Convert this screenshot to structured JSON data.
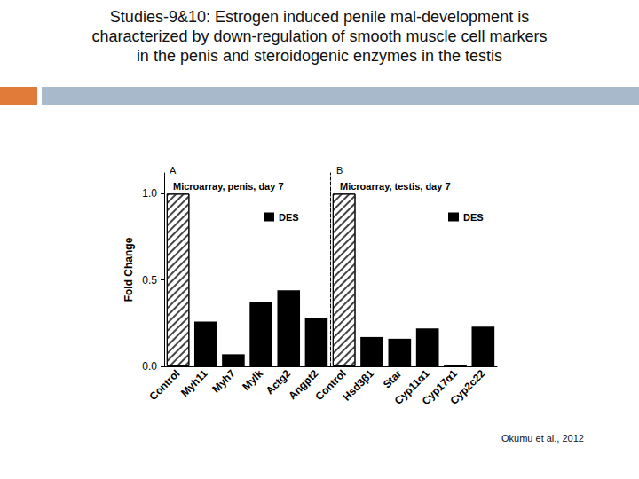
{
  "title_lines": [
    "Studies-9&10: Estrogen induced penile mal-development is",
    "characterized by down-regulation of smooth muscle cell markers",
    "in the penis and steroidogenic enzymes in the testis"
  ],
  "citation": "Okumu et al., 2012",
  "chart_data": [
    {
      "type": "bar",
      "annotations": [
        "A"
      ],
      "title": "Microarray, penis, day 7",
      "y_label": "Fold Change",
      "categories": [
        "Control",
        "Myh11",
        "Myh7",
        "Mylk",
        "Actg2",
        "Angpt2"
      ],
      "series": [
        {
          "marker": "hatch",
          "color": "#ffffff",
          "values": [
            1.0,
            null,
            null,
            null,
            null,
            null
          ]
        },
        {
          "name": "DES",
          "color": "#000000",
          "values": [
            null,
            0.26,
            0.07,
            0.37,
            0.44,
            0.28
          ]
        }
      ],
      "ylim": [
        0,
        1.12
      ],
      "yticks": [
        {
          "value": 0,
          "label": "0.0"
        },
        {
          "value": 0.5,
          "label": "0.5"
        },
        {
          "value": 1,
          "label": "1.0"
        }
      ]
    },
    {
      "type": "bar",
      "annotations": [
        "B"
      ],
      "title": "Microarray, testis, day 7",
      "categories": [
        "Control",
        "Hsd3β1",
        "Star",
        "Cyp11α1",
        "Cyp17α1",
        "Cyp2c22"
      ],
      "series": [
        {
          "marker": "hatch",
          "color": "#ffffff",
          "values": [
            1.0,
            null,
            null,
            null,
            null,
            null
          ]
        },
        {
          "name": "DES",
          "color": "#000000",
          "values": [
            null,
            0.17,
            0.16,
            0.22,
            0.01,
            0.23
          ]
        }
      ],
      "ylim": [
        0,
        1.12
      ],
      "tick_labels": "x"
    }
  ]
}
